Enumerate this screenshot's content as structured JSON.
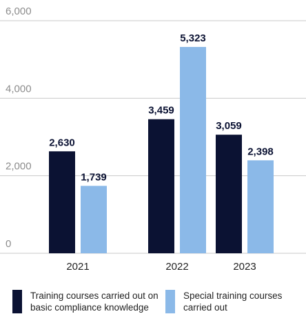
{
  "chart_data": {
    "type": "bar",
    "categories": [
      "2021",
      "2022",
      "2023"
    ],
    "series": [
      {
        "name": "Training courses carried out on basic compliance knowledge",
        "values": [
          2630,
          3459,
          3059
        ],
        "color": "#0b1233"
      },
      {
        "name": "Special training courses carried out",
        "values": [
          1739,
          5323,
          2398
        ],
        "color": "#8bb9e8"
      }
    ],
    "data_labels": {
      "s0": [
        "2,630",
        "3,459",
        "3,059"
      ],
      "s1": [
        "1,739",
        "5,323",
        "2,398"
      ]
    },
    "yticks": [
      0,
      2000,
      4000,
      6000
    ],
    "ytick_labels": [
      "0",
      "2,000",
      "4,000",
      "6,000"
    ],
    "ylim": [
      0,
      6000
    ],
    "grid": true,
    "legend_position": "bottom",
    "gridline_color": "#c8c8c8"
  },
  "legend": {
    "line1_a": "Training courses carried out on",
    "line1_b": "basic compliance knowledge",
    "line2_a": "Special training courses",
    "line2_b": "carried out"
  }
}
